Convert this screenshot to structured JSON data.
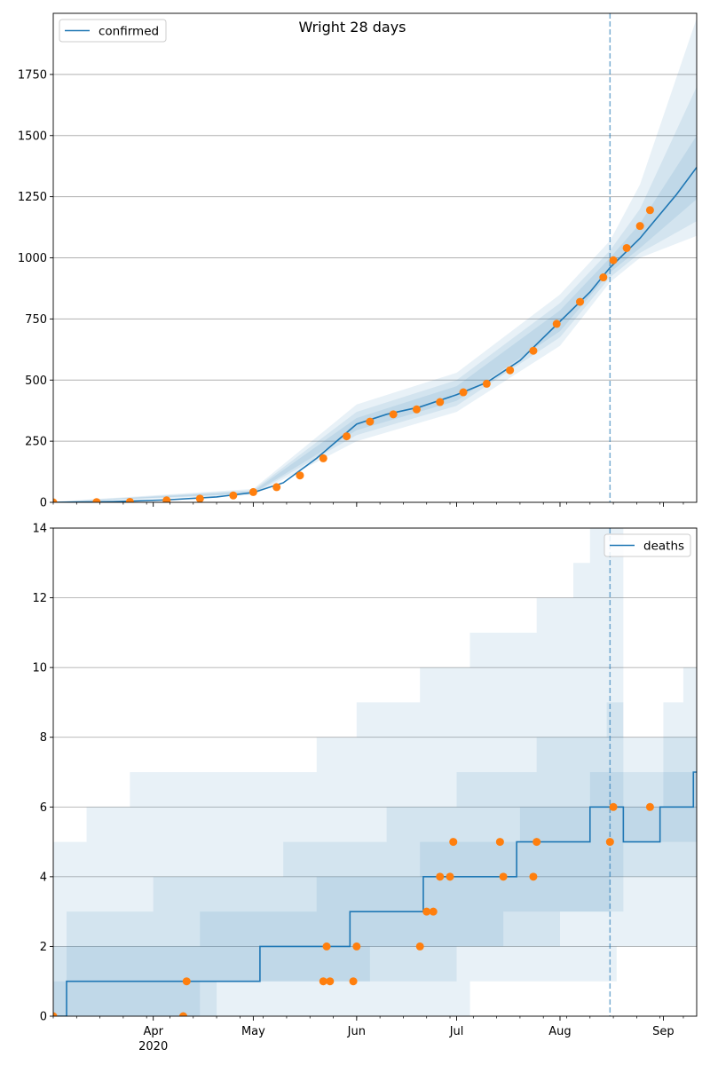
{
  "figure": {
    "title": "Wright 28 days"
  },
  "colors": {
    "model": "#1f77b4",
    "observed": "#ff7f0e",
    "band": "#1f77b4",
    "grid": "#b0b0b0",
    "cutoff": "#1f77b4"
  },
  "x_axis": {
    "start_date": "2020-03-02",
    "end_date": "2020-09-11",
    "month_ticks": [
      {
        "date": "2020-04-01",
        "label": "Apr",
        "sublabel": "2020"
      },
      {
        "date": "2020-05-01",
        "label": "May",
        "sublabel": ""
      },
      {
        "date": "2020-06-01",
        "label": "Jun",
        "sublabel": ""
      },
      {
        "date": "2020-07-01",
        "label": "Jul",
        "sublabel": ""
      },
      {
        "date": "2020-08-01",
        "label": "Aug",
        "sublabel": ""
      },
      {
        "date": "2020-09-01",
        "label": "Sep",
        "sublabel": ""
      }
    ],
    "forecast_start": "2020-08-16"
  },
  "chart_data": [
    {
      "type": "line",
      "title": "Wright 28 days",
      "legend": {
        "label": "confirmed",
        "placement": "top-left"
      },
      "grid": "horizontal",
      "ylim": [
        0,
        2000
      ],
      "yticks": [
        0,
        250,
        500,
        750,
        1000,
        1250,
        1500,
        1750
      ],
      "model_line": [
        [
          "2020-03-02",
          0
        ],
        [
          "2020-03-20",
          3
        ],
        [
          "2020-04-05",
          10
        ],
        [
          "2020-04-20",
          22
        ],
        [
          "2020-05-01",
          40
        ],
        [
          "2020-05-10",
          80
        ],
        [
          "2020-05-20",
          180
        ],
        [
          "2020-06-01",
          320
        ],
        [
          "2020-06-10",
          360
        ],
        [
          "2020-06-20",
          390
        ],
        [
          "2020-07-01",
          440
        ],
        [
          "2020-07-10",
          490
        ],
        [
          "2020-07-20",
          580
        ],
        [
          "2020-08-01",
          740
        ],
        [
          "2020-08-10",
          860
        ],
        [
          "2020-08-16",
          960
        ],
        [
          "2020-08-25",
          1080
        ],
        [
          "2020-09-05",
          1260
        ],
        [
          "2020-09-11",
          1370
        ]
      ],
      "bands": [
        {
          "lower": [
            [
              "2020-03-02",
              0
            ],
            [
              "2020-05-01",
              30
            ],
            [
              "2020-06-01",
              250
            ],
            [
              "2020-07-01",
              370
            ],
            [
              "2020-08-01",
              640
            ],
            [
              "2020-08-16",
              900
            ],
            [
              "2020-08-25",
              1000
            ],
            [
              "2020-09-11",
              1090
            ]
          ],
          "upper": [
            [
              "2020-03-02",
              2
            ],
            [
              "2020-05-01",
              55
            ],
            [
              "2020-06-01",
              400
            ],
            [
              "2020-07-01",
              530
            ],
            [
              "2020-08-01",
              850
            ],
            [
              "2020-08-16",
              1070
            ],
            [
              "2020-08-25",
              1300
            ],
            [
              "2020-09-11",
              1980
            ]
          ]
        },
        {
          "lower": [
            [
              "2020-03-02",
              0
            ],
            [
              "2020-05-01",
              34
            ],
            [
              "2020-06-01",
              275
            ],
            [
              "2020-07-01",
              395
            ],
            [
              "2020-08-01",
              675
            ],
            [
              "2020-08-16",
              920
            ],
            [
              "2020-08-25",
              1020
            ],
            [
              "2020-09-11",
              1150
            ]
          ],
          "upper": [
            [
              "2020-03-02",
              1
            ],
            [
              "2020-05-01",
              50
            ],
            [
              "2020-06-01",
              370
            ],
            [
              "2020-07-01",
              500
            ],
            [
              "2020-08-01",
              815
            ],
            [
              "2020-08-16",
              1030
            ],
            [
              "2020-08-25",
              1200
            ],
            [
              "2020-09-11",
              1700
            ]
          ]
        },
        {
          "lower": [
            [
              "2020-03-02",
              0
            ],
            [
              "2020-05-01",
              37
            ],
            [
              "2020-06-01",
              295
            ],
            [
              "2020-07-01",
              415
            ],
            [
              "2020-08-01",
              700
            ],
            [
              "2020-08-16",
              940
            ],
            [
              "2020-08-25",
              1040
            ],
            [
              "2020-09-11",
              1240
            ]
          ],
          "upper": [
            [
              "2020-03-02",
              1
            ],
            [
              "2020-05-01",
              45
            ],
            [
              "2020-06-01",
              345
            ],
            [
              "2020-07-01",
              475
            ],
            [
              "2020-08-01",
              785
            ],
            [
              "2020-08-16",
              1000
            ],
            [
              "2020-08-25",
              1140
            ],
            [
              "2020-09-11",
              1500
            ]
          ]
        }
      ],
      "observed": [
        [
          "2020-03-02",
          0
        ],
        [
          "2020-03-15",
          1
        ],
        [
          "2020-03-25",
          2
        ],
        [
          "2020-04-05",
          8
        ],
        [
          "2020-04-15",
          15
        ],
        [
          "2020-04-25",
          28
        ],
        [
          "2020-05-01",
          42
        ],
        [
          "2020-05-08",
          62
        ],
        [
          "2020-05-15",
          110
        ],
        [
          "2020-05-22",
          180
        ],
        [
          "2020-05-29",
          270
        ],
        [
          "2020-06-05",
          330
        ],
        [
          "2020-06-12",
          360
        ],
        [
          "2020-06-19",
          380
        ],
        [
          "2020-06-26",
          410
        ],
        [
          "2020-07-03",
          450
        ],
        [
          "2020-07-10",
          485
        ],
        [
          "2020-07-17",
          540
        ],
        [
          "2020-07-24",
          620
        ],
        [
          "2020-07-31",
          730
        ],
        [
          "2020-08-07",
          820
        ],
        [
          "2020-08-14",
          920
        ],
        [
          "2020-08-17",
          990
        ],
        [
          "2020-08-21",
          1040
        ],
        [
          "2020-08-25",
          1130
        ],
        [
          "2020-08-28",
          1195
        ]
      ]
    },
    {
      "type": "line",
      "legend": {
        "label": "deaths",
        "placement": "top-right"
      },
      "grid": "horizontal",
      "ylim": [
        0,
        14
      ],
      "yticks": [
        0,
        2,
        4,
        6,
        8,
        10,
        12,
        14
      ],
      "model_steps": [
        [
          "2020-03-02",
          0
        ],
        [
          "2020-03-06",
          1
        ],
        [
          "2020-05-03",
          2
        ],
        [
          "2020-05-30",
          3
        ],
        [
          "2020-06-21",
          4
        ],
        [
          "2020-07-19",
          5
        ],
        [
          "2020-08-10",
          6
        ],
        [
          "2020-08-20",
          5
        ],
        [
          "2020-08-31",
          6
        ],
        [
          "2020-09-10",
          7
        ],
        [
          "2020-09-11",
          7
        ]
      ],
      "bands": [
        {
          "lower": [
            [
              "2020-03-02",
              0
            ],
            [
              "2020-07-01",
              0
            ],
            [
              "2020-07-05",
              1
            ],
            [
              "2020-08-18",
              2
            ],
            [
              "2020-09-11",
              2
            ]
          ],
          "upper": [
            [
              "2020-03-02",
              5
            ],
            [
              "2020-03-12",
              6
            ],
            [
              "2020-03-25",
              7
            ],
            [
              "2020-05-20",
              8
            ],
            [
              "2020-06-01",
              9
            ],
            [
              "2020-06-20",
              10
            ],
            [
              "2020-07-05",
              11
            ],
            [
              "2020-07-25",
              12
            ],
            [
              "2020-08-05",
              13
            ],
            [
              "2020-08-10",
              14
            ],
            [
              "2020-08-20",
              8
            ],
            [
              "2020-09-01",
              9
            ],
            [
              "2020-09-07",
              10
            ],
            [
              "2020-09-11",
              11
            ]
          ]
        },
        {
          "lower": [
            [
              "2020-03-02",
              0
            ],
            [
              "2020-04-15",
              1
            ],
            [
              "2020-06-01",
              1
            ],
            [
              "2020-07-01",
              2
            ],
            [
              "2020-08-01",
              3
            ],
            [
              "2020-08-16",
              3
            ],
            [
              "2020-08-20",
              4
            ],
            [
              "2020-09-11",
              4
            ]
          ],
          "upper": [
            [
              "2020-03-02",
              2
            ],
            [
              "2020-03-06",
              3
            ],
            [
              "2020-04-01",
              4
            ],
            [
              "2020-05-10",
              5
            ],
            [
              "2020-06-10",
              6
            ],
            [
              "2020-07-01",
              7
            ],
            [
              "2020-07-25",
              8
            ],
            [
              "2020-08-15",
              9
            ],
            [
              "2020-08-20",
              7
            ],
            [
              "2020-09-01",
              8
            ],
            [
              "2020-09-11",
              9
            ]
          ]
        },
        {
          "lower": [
            [
              "2020-03-02",
              0
            ],
            [
              "2020-04-20",
              1
            ],
            [
              "2020-06-05",
              2
            ],
            [
              "2020-07-15",
              3
            ],
            [
              "2020-08-16",
              4
            ],
            [
              "2020-08-20",
              5
            ],
            [
              "2020-09-11",
              5
            ]
          ],
          "upper": [
            [
              "2020-03-02",
              1
            ],
            [
              "2020-03-06",
              2
            ],
            [
              "2020-04-15",
              3
            ],
            [
              "2020-05-20",
              4
            ],
            [
              "2020-06-20",
              5
            ],
            [
              "2020-07-20",
              6
            ],
            [
              "2020-08-10",
              7
            ],
            [
              "2020-08-20",
              6
            ],
            [
              "2020-09-01",
              7
            ],
            [
              "2020-09-11",
              8
            ]
          ]
        }
      ],
      "observed": [
        [
          "2020-03-02",
          0
        ],
        [
          "2020-04-10",
          0
        ],
        [
          "2020-04-11",
          1
        ],
        [
          "2020-05-22",
          1
        ],
        [
          "2020-05-23",
          2
        ],
        [
          "2020-05-24",
          1
        ],
        [
          "2020-05-31",
          1
        ],
        [
          "2020-06-01",
          2
        ],
        [
          "2020-06-20",
          2
        ],
        [
          "2020-06-22",
          3
        ],
        [
          "2020-06-24",
          3
        ],
        [
          "2020-06-26",
          4
        ],
        [
          "2020-06-29",
          4
        ],
        [
          "2020-06-30",
          5
        ],
        [
          "2020-07-14",
          5
        ],
        [
          "2020-07-15",
          4
        ],
        [
          "2020-07-24",
          4
        ],
        [
          "2020-07-25",
          5
        ],
        [
          "2020-08-16",
          5
        ],
        [
          "2020-08-17",
          6
        ],
        [
          "2020-08-28",
          6
        ]
      ]
    }
  ]
}
